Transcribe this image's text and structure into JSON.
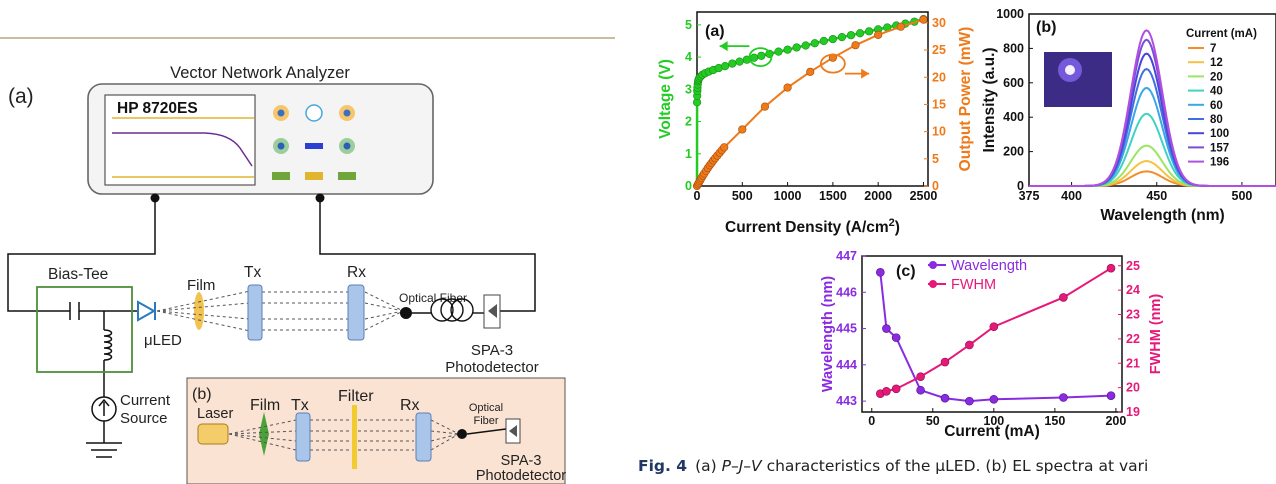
{
  "left": {
    "panel_a": "(a)",
    "panel_b": "(b)",
    "vna_title": "Vector Network Analyzer",
    "vna_model": "HP 8720ES",
    "bias_tee": "Bias-Tee",
    "film": "Film",
    "tx": "Tx",
    "rx": "Rx",
    "uled": "μLED",
    "optical_fiber": "Optical Fiber",
    "spa_line1": "SPA-3",
    "spa_line2": "Photodetector",
    "current_line1": "Current",
    "current_line2": "Source",
    "b_laser": "Laser",
    "b_film": "Film",
    "b_tx": "Tx",
    "b_filter": "Filter",
    "b_rx": "Rx",
    "b_fiber_line1": "Optical",
    "b_fiber_line2": "Fiber",
    "b_spa_line1": "SPA-3",
    "b_spa_line2": "Photodetector"
  },
  "caption": {
    "fig": "Fig. 4",
    "text_prefix": "(a) ",
    "text_italic": "P–J–V",
    "text_rest": " characteristics of the μLED. (b) EL spectra at vari"
  },
  "chart_data": [
    {
      "type": "line",
      "panel_label": "(a)",
      "xlabel": "Current Density (A/cm²)",
      "xlabel_main": "Current Density (A/cm",
      "xlabel_sup": "2",
      "xlabel_end": ")",
      "ylabel_left": "Voltage (V)",
      "ylabel_right": "Output Power (mW)",
      "xlim": [
        0,
        2550
      ],
      "ylim_left": [
        0,
        5.4
      ],
      "ylim_right": [
        0,
        32
      ],
      "xticks": [
        0,
        500,
        1000,
        1500,
        2000,
        2500
      ],
      "yticks_left": [
        0,
        1,
        2,
        3,
        4,
        5
      ],
      "yticks_right": [
        0,
        5,
        10,
        15,
        20,
        25,
        30
      ],
      "colors": {
        "voltage": "#22cc22",
        "power": "#ee7a1a"
      },
      "series": [
        {
          "axis": "left",
          "x": [
            1,
            2,
            3,
            5,
            8,
            12,
            17,
            25,
            40,
            60,
            90,
            130,
            180,
            240,
            310,
            390,
            470,
            550,
            630,
            710,
            800,
            900,
            1000,
            1100,
            1200,
            1300,
            1400,
            1500,
            1600,
            1700,
            1800,
            1900,
            2000,
            2100,
            2200,
            2300,
            2400,
            2500
          ],
          "y": [
            2.6,
            2.8,
            2.95,
            3.05,
            3.15,
            3.25,
            3.3,
            3.35,
            3.4,
            3.45,
            3.5,
            3.55,
            3.6,
            3.66,
            3.72,
            3.8,
            3.86,
            3.92,
            3.98,
            4.04,
            4.1,
            4.17,
            4.23,
            4.3,
            4.36,
            4.43,
            4.5,
            4.56,
            4.62,
            4.68,
            4.74,
            4.8,
            4.86,
            4.92,
            4.98,
            5.04,
            5.1,
            5.18
          ]
        },
        {
          "axis": "right",
          "x": [
            0,
            10,
            20,
            30,
            40,
            50,
            65,
            80,
            100,
            120,
            140,
            160,
            180,
            200,
            225,
            250,
            275,
            300,
            500,
            750,
            1000,
            1250,
            1500,
            1750,
            2000,
            2250,
            2500
          ],
          "y": [
            0,
            0.3,
            0.6,
            0.9,
            1.2,
            1.5,
            1.9,
            2.3,
            2.8,
            3.3,
            3.8,
            4.2,
            4.7,
            5.1,
            5.6,
            6.1,
            6.6,
            7.1,
            10.4,
            14.6,
            18.1,
            21.0,
            23.6,
            25.9,
            27.8,
            29.3,
            30.6
          ]
        }
      ]
    },
    {
      "type": "line",
      "panel_label": "(b)",
      "xlabel": "Wavelength (nm)",
      "ylabel": "Intensity (a.u.)",
      "xlim": [
        375,
        520
      ],
      "ylim": [
        0,
        1000
      ],
      "xticks": [
        375,
        400,
        450,
        500
      ],
      "yticks": [
        0,
        200,
        400,
        600,
        800,
        1000
      ],
      "legend_title": "Current (mA)",
      "legend_position": "right",
      "peak_nm": 444,
      "series": [
        {
          "name": "7",
          "peak": 85,
          "color": "#f28e2b"
        },
        {
          "name": "12",
          "peak": 145,
          "color": "#f6c244"
        },
        {
          "name": "20",
          "peak": 235,
          "color": "#9be564"
        },
        {
          "name": "40",
          "peak": 420,
          "color": "#3fd3c3"
        },
        {
          "name": "60",
          "peak": 570,
          "color": "#3aa7e8"
        },
        {
          "name": "80",
          "peak": 680,
          "color": "#3f6fe0"
        },
        {
          "name": "100",
          "peak": 770,
          "color": "#4a45d8"
        },
        {
          "name": "157",
          "peak": 850,
          "color": "#7c4ddb"
        },
        {
          "name": "196",
          "peak": 905,
          "color": "#b14fe0"
        }
      ]
    },
    {
      "type": "line",
      "panel_label": "(c)",
      "xlabel": "Current (mA)",
      "ylabel_left": "Wavelength (nm)",
      "ylabel_right": "FWHM (nm)",
      "xlim": [
        -8,
        205
      ],
      "ylim_left": [
        442.7,
        447.0
      ],
      "ylim_right": [
        19.0,
        25.4
      ],
      "xticks": [
        0,
        50,
        100,
        150,
        200
      ],
      "yticks_left": [
        443,
        444,
        445,
        446,
        447
      ],
      "yticks_right": [
        19,
        20,
        21,
        22,
        23,
        24,
        25
      ],
      "colors": {
        "wavelength": "#8a2be2",
        "fwhm": "#e6197a"
      },
      "series": [
        {
          "name": "Wavelength",
          "axis": "left",
          "x": [
            7,
            12,
            20,
            40,
            60,
            80,
            100,
            157,
            196
          ],
          "y": [
            446.55,
            445.0,
            444.75,
            443.3,
            443.08,
            443.0,
            443.05,
            443.1,
            443.15
          ]
        },
        {
          "name": "FWHM",
          "axis": "right",
          "x": [
            7,
            12,
            20,
            40,
            60,
            80,
            100,
            157,
            196
          ],
          "y": [
            19.75,
            19.85,
            19.95,
            20.45,
            21.05,
            21.75,
            22.5,
            23.7,
            24.9
          ]
        }
      ]
    }
  ]
}
